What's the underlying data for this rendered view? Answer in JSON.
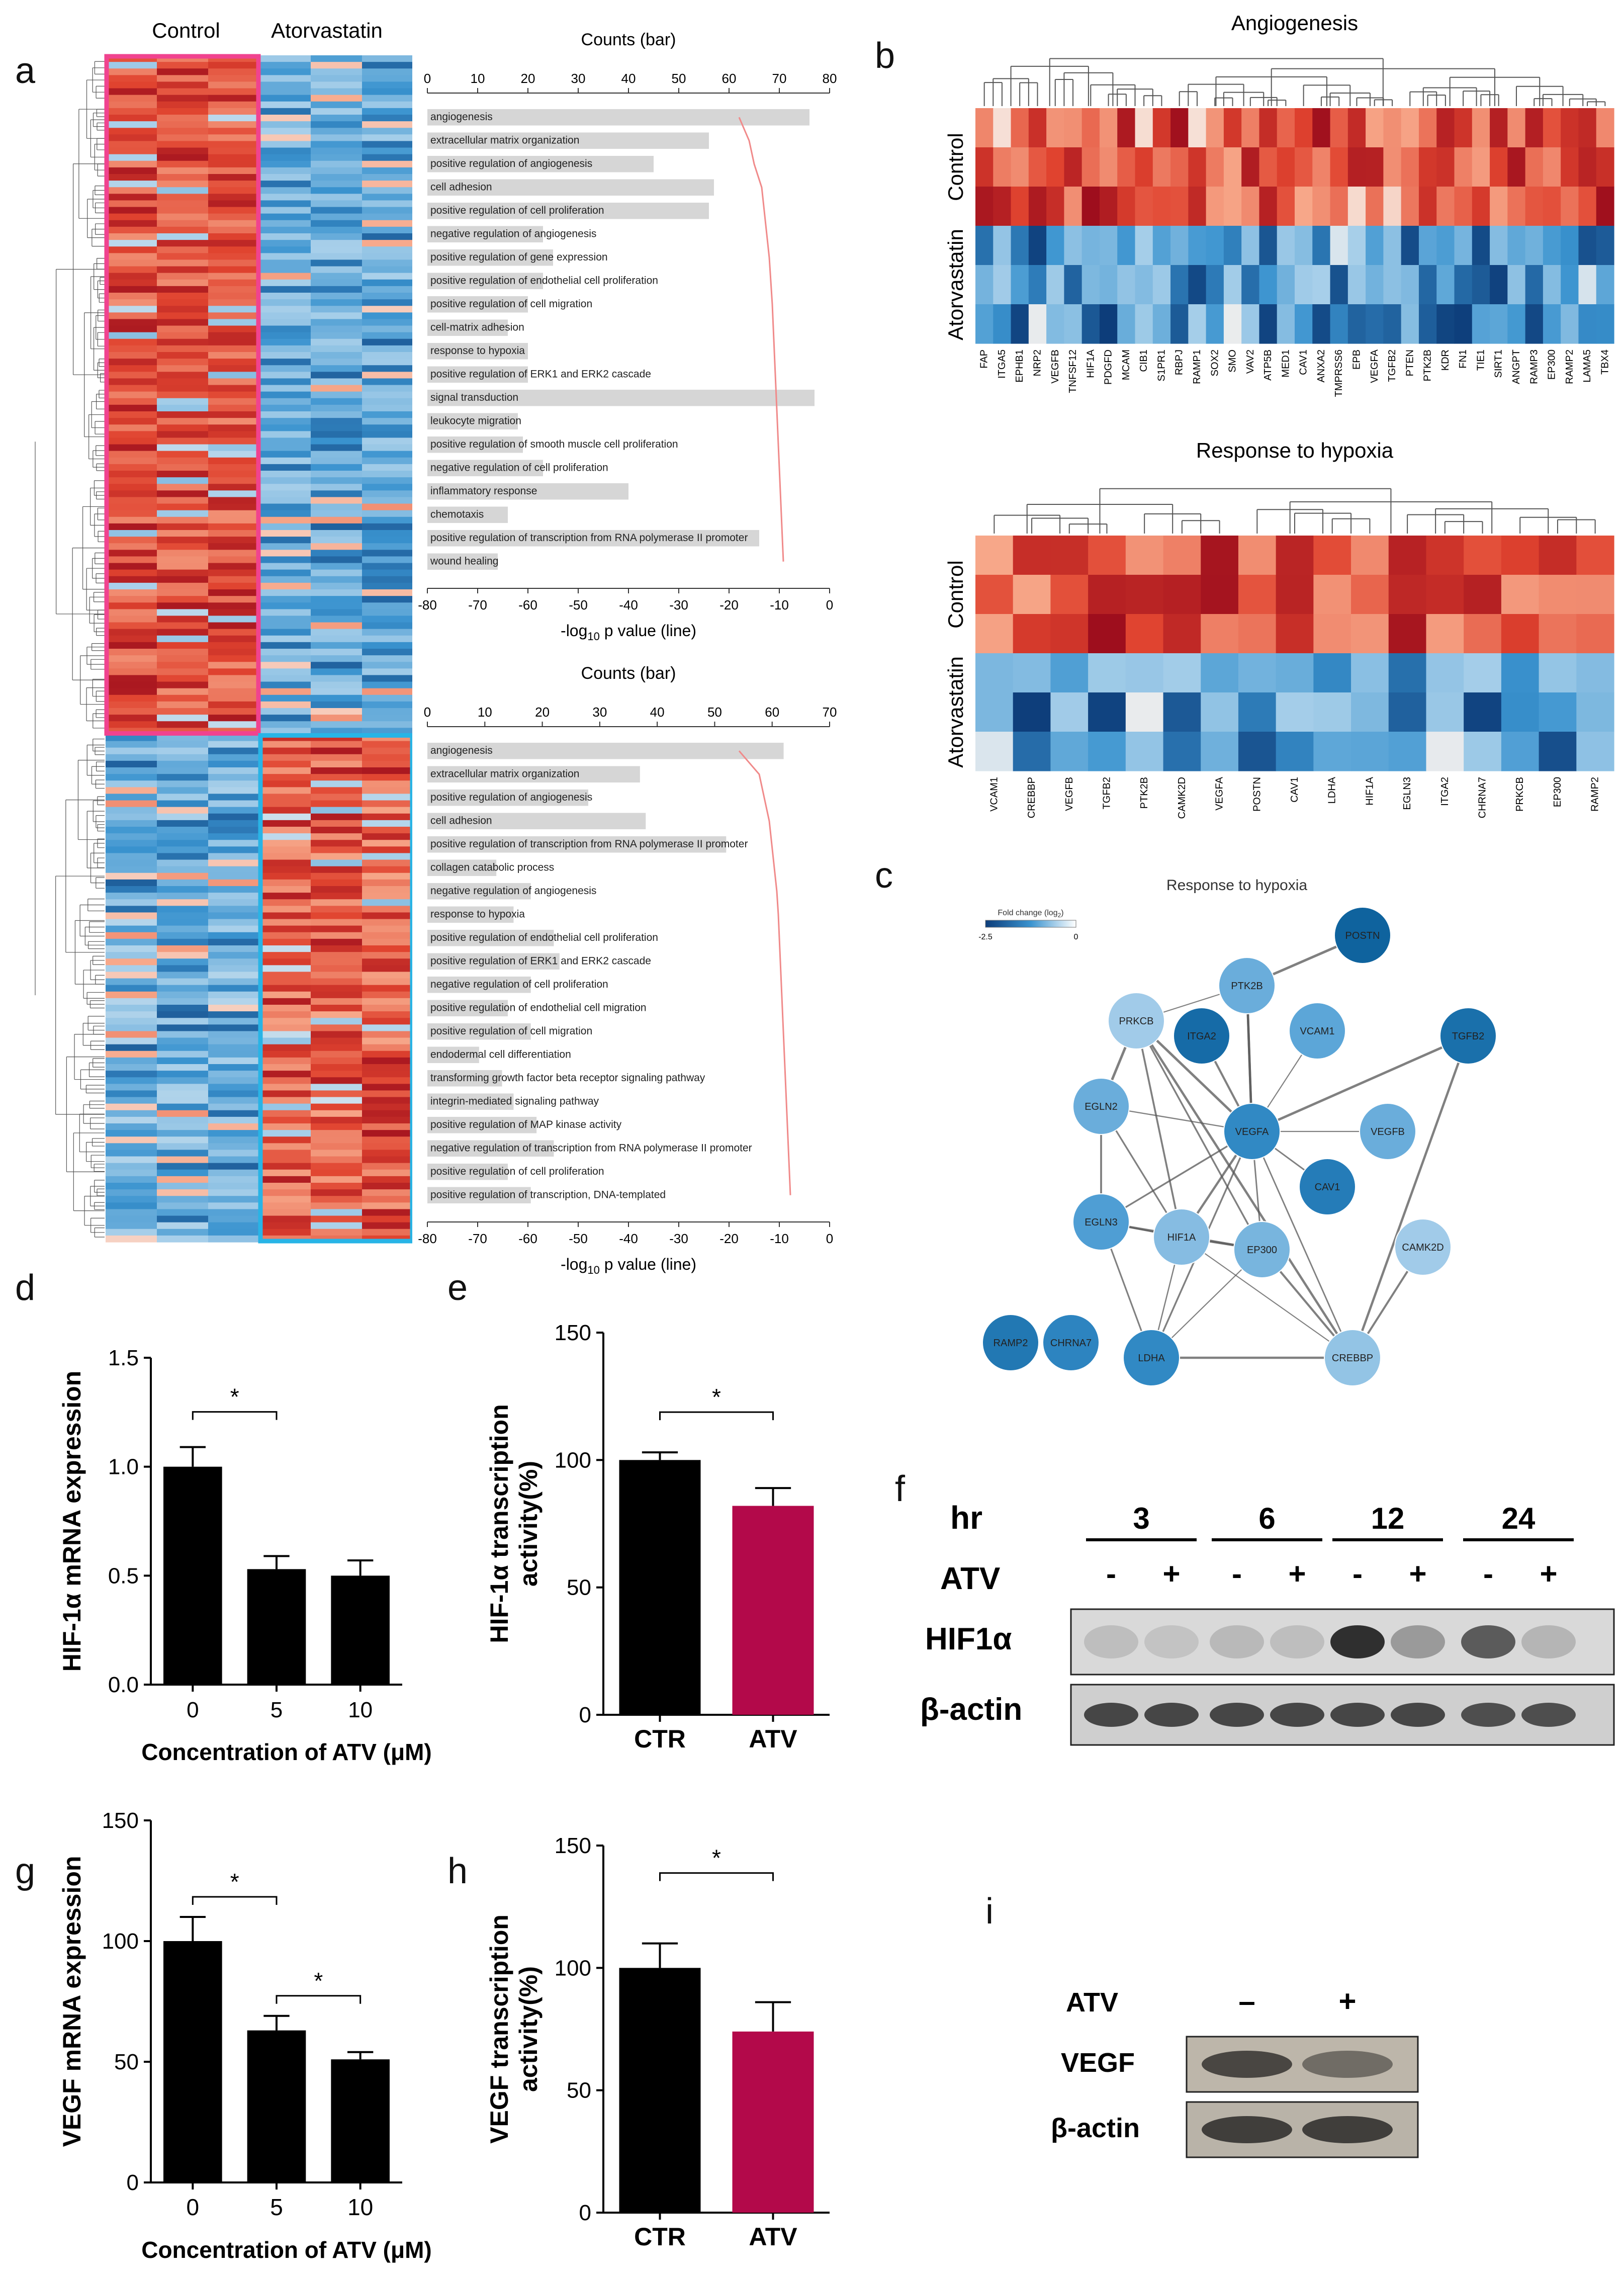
{
  "figure": {
    "panel_letters": [
      "a",
      "b",
      "c",
      "d",
      "e",
      "f",
      "g",
      "h",
      "i"
    ],
    "colors": {
      "red_dark": "#9b0c1c",
      "red": "#e0432f",
      "red_light": "#f7a88a",
      "white": "#f6f1ee",
      "blue_light": "#a9d0ea",
      "blue": "#3a93cf",
      "blue_dark": "#0d3d7a",
      "magenta_box": "#f0438f",
      "cyan_box": "#28b4e6",
      "atv_bar": "#b3094a",
      "black_bar": "#000000",
      "go_bar": "#d6d6d6",
      "go_line": "#f08a8a"
    }
  },
  "heatmap_a": {
    "col_labels": [
      "Control",
      "Atorvastatin"
    ],
    "up_fraction": 0.57
  },
  "chart_data": [
    {
      "id": "go_top",
      "type": "bar",
      "title": "Counts (bar)",
      "top_ticks": [
        "0",
        "10",
        "20",
        "30",
        "40",
        "50",
        "60",
        "70",
        "80"
      ],
      "top_range": [
        0,
        80
      ],
      "bottom_ticks": [
        "-80",
        "-70",
        "-60",
        "-50",
        "-40",
        "-30",
        "-20",
        "-10",
        "0"
      ],
      "bottom_range": [
        -80,
        0
      ],
      "xlabel_bottom": "-log",
      "xlabel_sub": "10",
      "xlabel_rest": " p value (line)",
      "categories": [
        "angiogenesis",
        "extracellular matrix organization",
        "positive regulation of angiogenesis",
        "cell adhesion",
        "positive regulation of cell proliferation",
        "negative regulation of angiogenesis",
        "positive regulation of gene expression",
        "positive regulation of endothelial cell proliferation",
        "positive regulation of cell migration",
        "cell-matrix adhesion",
        "response to hypoxia",
        "positive regulation of ERK1 and ERK2 cascade",
        "signal transduction",
        "leukocyte migration",
        "positive regulation of smooth muscle cell proliferation",
        "negative regulation of cell proliferation",
        "inflammatory response",
        "chemotaxis",
        "positive regulation of transcription from RNA polymerase II promoter",
        "wound healing"
      ],
      "values": [
        76,
        56,
        45,
        57,
        56,
        23,
        25,
        23,
        20,
        16,
        20,
        20,
        77,
        18,
        19,
        23,
        40,
        16,
        66,
        14
      ],
      "line": [
        -18,
        -16,
        -15,
        -13.5,
        -13,
        -12.5,
        -12,
        -11.7,
        -11.4,
        -11.2,
        -11,
        -10.8,
        -10.6,
        -10.4,
        -10.2,
        -10,
        -9.8,
        -9.6,
        -9.4,
        -9.2
      ]
    },
    {
      "id": "go_bottom",
      "type": "bar",
      "title": "Counts (bar)",
      "top_ticks": [
        "0",
        "10",
        "20",
        "30",
        "40",
        "50",
        "60",
        "70"
      ],
      "top_range": [
        0,
        70
      ],
      "bottom_ticks": [
        "-80",
        "-70",
        "-60",
        "-50",
        "-40",
        "-30",
        "-20",
        "-10",
        "0"
      ],
      "bottom_range": [
        -80,
        0
      ],
      "xlabel_bottom": "-log",
      "xlabel_sub": "10",
      "xlabel_rest": " p value (line)",
      "categories": [
        "angiogenesis",
        "extracellular matrix organization",
        "positive regulation of angiogenesis",
        "cell adhesion",
        "positive regulation of transcription from RNA polymerase II promoter",
        "collagen catabolic process",
        "negative regulation of angiogenesis",
        "response to hypoxia",
        "positive regulation of endothelial cell proliferation",
        "positive regulation of ERK1 and ERK2 cascade",
        "negative regulation of cell proliferation",
        "positive regulation of endothelial cell migration",
        "positive regulation of cell migration",
        "endodermal cell differentiation",
        "transforming growth factor beta receptor signaling pathway",
        "integrin-mediated signaling pathway",
        "positive regulation of MAP kinase activity",
        "negative regulation of transcription from RNA polymerase II promoter",
        "positive regulation of cell proliferation",
        "positive regulation of transcription, DNA-templated"
      ],
      "values": [
        62,
        37,
        28,
        38,
        52,
        12,
        18,
        15,
        22,
        23,
        18,
        14,
        18,
        9,
        13,
        15,
        19,
        22,
        14,
        18
      ],
      "line": [
        -18,
        -14,
        -13,
        -12,
        -11.5,
        -11,
        -10.5,
        -10.2,
        -10,
        -9.8,
        -9.6,
        -9.4,
        -9.2,
        -9,
        -8.8,
        -8.6,
        -8.4,
        -8.2,
        -8,
        -7.8
      ]
    },
    {
      "id": "heat_angio",
      "type": "heatmap",
      "title": "Angiogenesis",
      "row_groups": [
        "Control",
        "Atorvastatin"
      ],
      "genes": [
        "FAP",
        "ITGA5",
        "EPHB1",
        "NRP2",
        "VEGFB",
        "TNFSF12",
        "HIF1A",
        "PDGFD",
        "MCAM",
        "CIB1",
        "S1PR1",
        "RBPJ",
        "RAMP1",
        "SOX2",
        "SMO",
        "VAV2",
        "ATP5B",
        "MED1",
        "CAV1",
        "ANXA2",
        "TMPRSS6",
        "EPB",
        "VEGFA",
        "TGFB2",
        "PTEN",
        "PTK2B",
        "KDR",
        "FN1",
        "TIE1",
        "SIRT1",
        "ANGPT",
        "RAMP3",
        "EP300",
        "RAMP2",
        "LAMA5",
        "TBX4"
      ]
    },
    {
      "id": "heat_hypoxia",
      "type": "heatmap",
      "title": "Response to hypoxia",
      "row_groups": [
        "Control",
        "Atorvastatin"
      ],
      "genes": [
        "VCAM1",
        "CREBBP",
        "VEGFB",
        "TGFB2",
        "PTK2B",
        "CAMK2D",
        "VEGFA",
        "POSTN",
        "CAV1",
        "LDHA",
        "HIF1A",
        "EGLN3",
        "ITGA2",
        "CHRNA7",
        "PRKCB",
        "EP300",
        "RAMP2"
      ]
    },
    {
      "id": "network_c",
      "type": "network",
      "title": "Response to hypoxia",
      "legend_title": "Fold change (log",
      "legend_sub": "2",
      "legend_close": ")",
      "legend_ticks": [
        "-2.5",
        "0"
      ],
      "nodes": [
        {
          "id": "POSTN",
          "fc": -2.4
        },
        {
          "id": "PTK2B",
          "fc": -0.9
        },
        {
          "id": "PRKCB",
          "fc": -0.5
        },
        {
          "id": "ITGA2",
          "fc": -2.2
        },
        {
          "id": "VCAM1",
          "fc": -1.0
        },
        {
          "id": "TGFB2",
          "fc": -2.1
        },
        {
          "id": "EGLN2",
          "fc": -0.9
        },
        {
          "id": "VEGFA",
          "fc": -1.5
        },
        {
          "id": "VEGFB",
          "fc": -0.9
        },
        {
          "id": "CAV1",
          "fc": -1.8
        },
        {
          "id": "EGLN3",
          "fc": -1.1
        },
        {
          "id": "HIF1A",
          "fc": -0.7
        },
        {
          "id": "EP300",
          "fc": -0.8
        },
        {
          "id": "CAMK2D",
          "fc": -0.5
        },
        {
          "id": "RAMP2",
          "fc": -1.9
        },
        {
          "id": "CHRNA7",
          "fc": -1.6
        },
        {
          "id": "LDHA",
          "fc": -1.5
        },
        {
          "id": "CREBBP",
          "fc": -0.6
        }
      ],
      "edges": [
        [
          "PRKCB",
          "PTK2B"
        ],
        [
          "PTK2B",
          "VEGFA"
        ],
        [
          "PTK2B",
          "POSTN"
        ],
        [
          "PRKCB",
          "VEGFA"
        ],
        [
          "PRKCB",
          "EGLN2"
        ],
        [
          "PRKCB",
          "HIF1A"
        ],
        [
          "PRKCB",
          "EP300"
        ],
        [
          "PRKCB",
          "CREBBP"
        ],
        [
          "ITGA2",
          "VEGFA"
        ],
        [
          "VCAM1",
          "VEGFA"
        ],
        [
          "TGFB2",
          "VEGFA"
        ],
        [
          "TGFB2",
          "CREBBP"
        ],
        [
          "EGLN2",
          "VEGFA"
        ],
        [
          "EGLN2",
          "EGLN3"
        ],
        [
          "EGLN2",
          "HIF1A"
        ],
        [
          "VEGFA",
          "VEGFB"
        ],
        [
          "VEGFA",
          "CAV1"
        ],
        [
          "VEGFA",
          "HIF1A"
        ],
        [
          "VEGFA",
          "EP300"
        ],
        [
          "VEGFA",
          "EGLN3"
        ],
        [
          "VEGFA",
          "LDHA"
        ],
        [
          "VEGFA",
          "CREBBP"
        ],
        [
          "EGLN3",
          "HIF1A"
        ],
        [
          "EGLN3",
          "EP300"
        ],
        [
          "EGLN3",
          "LDHA"
        ],
        [
          "HIF1A",
          "EP300"
        ],
        [
          "HIF1A",
          "LDHA"
        ],
        [
          "HIF1A",
          "CREBBP"
        ],
        [
          "EP300",
          "CREBBP"
        ],
        [
          "EP300",
          "LDHA"
        ],
        [
          "CAMK2D",
          "CREBBP"
        ],
        [
          "LDHA",
          "CREBBP"
        ],
        [
          "VEGFA",
          "PTK2B"
        ]
      ]
    },
    {
      "id": "bar_d",
      "type": "bar",
      "ylabel": "HIF-1α mRNA expression",
      "xlabel": "Concentration of ATV (μM)",
      "categories": [
        "0",
        "5",
        "10"
      ],
      "values": [
        1.0,
        0.53,
        0.5
      ],
      "errors": [
        0.09,
        0.06,
        0.07
      ],
      "ylim": [
        0,
        1.5
      ],
      "yticks": [
        "0.0",
        "0.5",
        "1.0",
        "1.5"
      ],
      "ytick_values": [
        0,
        0.5,
        1,
        1.5
      ],
      "sig": [
        {
          "from": 0,
          "to": 1,
          "label": "*"
        }
      ]
    },
    {
      "id": "bar_e",
      "type": "bar",
      "ylabel_line1": "HIF-1α  transcription",
      "ylabel_line2": "activity(%)",
      "categories": [
        "CTR",
        "ATV"
      ],
      "values": [
        100,
        82
      ],
      "errors": [
        3,
        7
      ],
      "ylim": [
        0,
        150
      ],
      "yticks": [
        "0",
        "50",
        "100",
        "150"
      ],
      "ytick_values": [
        0,
        50,
        100,
        150
      ],
      "sig": [
        {
          "from": 0,
          "to": 1,
          "label": "*"
        }
      ]
    },
    {
      "id": "bar_g",
      "type": "bar",
      "ylabel": "VEGF mRNA expression",
      "xlabel": "Concentration of ATV (μM)",
      "categories": [
        "0",
        "5",
        "10"
      ],
      "values": [
        100,
        63,
        51
      ],
      "errors": [
        10,
        6,
        3
      ],
      "ylim": [
        0,
        150
      ],
      "yticks": [
        "0",
        "50",
        "100",
        "150"
      ],
      "ytick_values": [
        0,
        50,
        100,
        150
      ],
      "sig": [
        {
          "from": 0,
          "to": 1,
          "label": "*"
        },
        {
          "from": 1,
          "to": 2,
          "label": "*"
        }
      ]
    },
    {
      "id": "bar_h",
      "type": "bar",
      "ylabel_line1": "VEGF  transcription",
      "ylabel_line2": "activity(%)",
      "categories": [
        "CTR",
        "ATV"
      ],
      "values": [
        100,
        74
      ],
      "errors": [
        10,
        12
      ],
      "ylim": [
        0,
        150
      ],
      "yticks": [
        "0",
        "50",
        "100",
        "150"
      ],
      "ytick_values": [
        0,
        50,
        100,
        150
      ],
      "sig": [
        {
          "from": 0,
          "to": 1,
          "label": "*"
        }
      ]
    }
  ],
  "blot_f": {
    "hr_label": "hr",
    "timepoints": [
      "3",
      "6",
      "12",
      "24"
    ],
    "atv_label": "ATV",
    "signs": [
      "-",
      "+",
      "-",
      "+",
      "-",
      "+",
      "-",
      "+"
    ],
    "rows": [
      "HIF1α",
      "β-actin"
    ],
    "hif_intensity": [
      0.15,
      0.12,
      0.18,
      0.15,
      0.95,
      0.35,
      0.7,
      0.2
    ],
    "actin_intensity": [
      0.8,
      0.8,
      0.8,
      0.8,
      0.8,
      0.8,
      0.75,
      0.75
    ]
  },
  "blot_i": {
    "atv_label": "ATV",
    "signs": [
      "–",
      "+"
    ],
    "rows": [
      "VEGF",
      "β-actin"
    ],
    "vegf_intensity": [
      0.75,
      0.5
    ],
    "actin_intensity": [
      0.8,
      0.8
    ]
  }
}
